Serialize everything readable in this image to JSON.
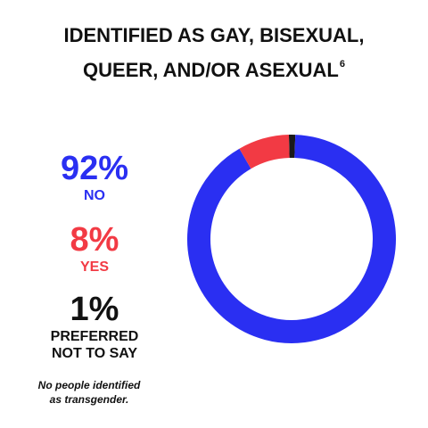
{
  "title": {
    "line1": "IDENTIFIED AS GAY, BISEXUAL,",
    "line2": "QUEER, AND/OR ASEXUAL",
    "footnote_marker": "6"
  },
  "stats": [
    {
      "key": "no",
      "percent": "92%",
      "label": "NO",
      "color": "#2a2ff2"
    },
    {
      "key": "yes",
      "percent": "8%",
      "label": "YES",
      "color": "#f23a44"
    },
    {
      "key": "pnts",
      "percent": "1%",
      "label_line1": "PREFERRED",
      "label_line2": "NOT TO SAY",
      "color": "#111111"
    }
  ],
  "footnote": {
    "line1": "No people identified",
    "line2": "as transgender."
  },
  "chart_data": {
    "type": "pie",
    "variant": "donut",
    "categories": [
      "NO",
      "YES",
      "PREFERRED NOT TO SAY"
    ],
    "values": [
      92,
      8,
      1
    ],
    "colors": [
      "#2a2ff2",
      "#f23a44",
      "#1a1a1a"
    ],
    "title": "IDENTIFIED AS GAY, BISEXUAL, QUEER, AND/OR ASEXUAL",
    "legend": "left"
  }
}
